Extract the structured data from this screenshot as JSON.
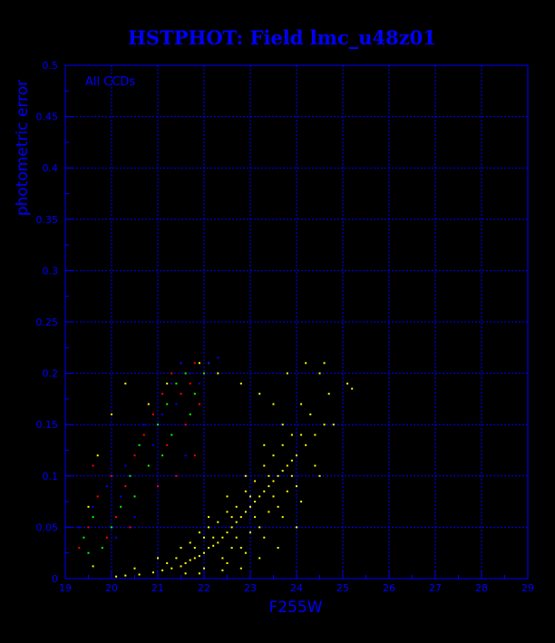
{
  "window": {
    "background": "#000000"
  },
  "chart_data": {
    "type": "scatter",
    "title": "HSTPHOT: Field lmc_u48z01",
    "xlabel": "F255W",
    "ylabel": "photometric error",
    "annotation": "All CCDs",
    "xlim": [
      19,
      29
    ],
    "ylim": [
      0,
      0.5
    ],
    "xticks": [
      "19",
      "20",
      "21",
      "22",
      "23",
      "24",
      "25",
      "26",
      "27",
      "28",
      "29"
    ],
    "yticks": [
      "0",
      "0.05",
      "0.1",
      "0.15",
      "0.2",
      "0.25",
      "0.3",
      "0.35",
      "0.4",
      "0.45",
      "0.5"
    ],
    "grid": true,
    "colors": {
      "axis": "#0000ff",
      "grid": "#0000ff",
      "text": "#0000ff"
    },
    "series": [
      {
        "color": "#ffff00",
        "points": [
          [
            20.1,
            0.002
          ],
          [
            20.3,
            0.003
          ],
          [
            20.6,
            0.004
          ],
          [
            20.9,
            0.006
          ],
          [
            21.1,
            0.008
          ],
          [
            21.3,
            0.01
          ],
          [
            21.5,
            0.012
          ],
          [
            21.6,
            0.015
          ],
          [
            21.7,
            0.018
          ],
          [
            21.8,
            0.02
          ],
          [
            21.9,
            0.022
          ],
          [
            22.0,
            0.025
          ],
          [
            22.1,
            0.03
          ],
          [
            22.2,
            0.032
          ],
          [
            22.3,
            0.035
          ],
          [
            22.4,
            0.04
          ],
          [
            22.5,
            0.045
          ],
          [
            22.6,
            0.05
          ],
          [
            22.7,
            0.055
          ],
          [
            22.8,
            0.06
          ],
          [
            22.9,
            0.065
          ],
          [
            23.0,
            0.07
          ],
          [
            23.1,
            0.075
          ],
          [
            23.2,
            0.08
          ],
          [
            23.3,
            0.085
          ],
          [
            23.4,
            0.09
          ],
          [
            23.5,
            0.095
          ],
          [
            23.6,
            0.1
          ],
          [
            23.7,
            0.105
          ],
          [
            23.8,
            0.11
          ],
          [
            23.9,
            0.115
          ],
          [
            24.0,
            0.12
          ],
          [
            24.2,
            0.13
          ],
          [
            24.4,
            0.14
          ],
          [
            24.6,
            0.15
          ],
          [
            21.4,
            0.02
          ],
          [
            21.8,
            0.03
          ],
          [
            22.2,
            0.04
          ],
          [
            22.6,
            0.06
          ],
          [
            23.0,
            0.08
          ],
          [
            23.4,
            0.1
          ],
          [
            21.6,
            0.005
          ],
          [
            22.0,
            0.01
          ],
          [
            22.4,
            0.02
          ],
          [
            22.8,
            0.03
          ],
          [
            23.2,
            0.05
          ],
          [
            23.6,
            0.07
          ],
          [
            24.0,
            0.09
          ],
          [
            21.9,
            0.045
          ],
          [
            22.3,
            0.055
          ],
          [
            22.7,
            0.07
          ],
          [
            23.1,
            0.095
          ],
          [
            23.5,
            0.12
          ],
          [
            23.9,
            0.14
          ],
          [
            24.3,
            0.16
          ],
          [
            24.7,
            0.18
          ],
          [
            25.1,
            0.19
          ],
          [
            22.5,
            0.015
          ],
          [
            22.9,
            0.025
          ],
          [
            23.3,
            0.04
          ],
          [
            23.7,
            0.06
          ],
          [
            24.1,
            0.075
          ],
          [
            24.5,
            0.1
          ],
          [
            21.2,
            0.015
          ],
          [
            21.7,
            0.035
          ],
          [
            22.1,
            0.06
          ],
          [
            22.5,
            0.08
          ],
          [
            22.9,
            0.1
          ],
          [
            23.3,
            0.13
          ],
          [
            23.7,
            0.15
          ],
          [
            24.1,
            0.17
          ],
          [
            24.5,
            0.2
          ],
          [
            23.0,
            0.045
          ],
          [
            23.4,
            0.065
          ],
          [
            23.8,
            0.085
          ],
          [
            22.6,
            0.03
          ],
          [
            22.0,
            0.04
          ],
          [
            21.5,
            0.03
          ],
          [
            21.0,
            0.02
          ],
          [
            20.5,
            0.01
          ],
          [
            19.6,
            0.012
          ],
          [
            19.5,
            0.07
          ],
          [
            19.7,
            0.12
          ],
          [
            20.0,
            0.16
          ],
          [
            20.3,
            0.19
          ],
          [
            20.8,
            0.17
          ],
          [
            21.2,
            0.19
          ],
          [
            21.9,
            0.21
          ],
          [
            22.3,
            0.2
          ],
          [
            22.8,
            0.19
          ],
          [
            23.2,
            0.18
          ],
          [
            23.5,
            0.17
          ],
          [
            23.8,
            0.2
          ],
          [
            24.2,
            0.21
          ],
          [
            24.6,
            0.21
          ],
          [
            25.2,
            0.185
          ],
          [
            24.8,
            0.15
          ],
          [
            24.4,
            0.11
          ],
          [
            24.0,
            0.05
          ],
          [
            23.6,
            0.03
          ],
          [
            23.2,
            0.02
          ],
          [
            22.8,
            0.01
          ],
          [
            22.4,
            0.008
          ],
          [
            21.9,
            0.005
          ],
          [
            22.1,
            0.05
          ],
          [
            22.5,
            0.065
          ],
          [
            22.9,
            0.085
          ],
          [
            23.3,
            0.11
          ],
          [
            23.7,
            0.13
          ],
          [
            24.1,
            0.14
          ],
          [
            22.7,
            0.04
          ],
          [
            23.1,
            0.06
          ],
          [
            23.5,
            0.08
          ],
          [
            23.9,
            0.1
          ]
        ]
      },
      {
        "color": "#ff0000",
        "points": [
          [
            19.3,
            0.03
          ],
          [
            19.5,
            0.05
          ],
          [
            19.7,
            0.08
          ],
          [
            19.9,
            0.04
          ],
          [
            20.1,
            0.06
          ],
          [
            20.3,
            0.09
          ],
          [
            20.5,
            0.12
          ],
          [
            20.7,
            0.14
          ],
          [
            20.9,
            0.16
          ],
          [
            21.1,
            0.18
          ],
          [
            21.3,
            0.2
          ],
          [
            21.5,
            0.21
          ],
          [
            21.7,
            0.19
          ],
          [
            21.9,
            0.17
          ],
          [
            21.2,
            0.13
          ],
          [
            21.4,
            0.1
          ],
          [
            21.6,
            0.15
          ],
          [
            21.8,
            0.12
          ],
          [
            20.4,
            0.05
          ],
          [
            20.0,
            0.1
          ],
          [
            19.6,
            0.11
          ],
          [
            21.0,
            0.09
          ],
          [
            21.5,
            0.18
          ],
          [
            21.8,
            0.21
          ]
        ]
      },
      {
        "color": "#00ff00",
        "points": [
          [
            19.4,
            0.04
          ],
          [
            19.6,
            0.06
          ],
          [
            19.8,
            0.03
          ],
          [
            20.0,
            0.05
          ],
          [
            20.2,
            0.07
          ],
          [
            20.4,
            0.1
          ],
          [
            20.6,
            0.13
          ],
          [
            20.8,
            0.11
          ],
          [
            21.0,
            0.15
          ],
          [
            21.2,
            0.17
          ],
          [
            21.4,
            0.19
          ],
          [
            21.6,
            0.2
          ],
          [
            21.8,
            0.18
          ],
          [
            22.0,
            0.2
          ],
          [
            21.3,
            0.14
          ],
          [
            21.7,
            0.16
          ],
          [
            20.5,
            0.08
          ],
          [
            19.5,
            0.025
          ],
          [
            22.1,
            0.21
          ],
          [
            21.1,
            0.12
          ]
        ]
      },
      {
        "color": "#0000ff",
        "points": [
          [
            19.3,
            0.05
          ],
          [
            19.6,
            0.07
          ],
          [
            19.9,
            0.09
          ],
          [
            20.1,
            0.04
          ],
          [
            20.3,
            0.11
          ],
          [
            20.5,
            0.06
          ],
          [
            20.7,
            0.15
          ],
          [
            20.9,
            0.13
          ],
          [
            21.1,
            0.16
          ],
          [
            21.3,
            0.19
          ],
          [
            21.5,
            0.21
          ],
          [
            21.7,
            0.2
          ],
          [
            21.9,
            0.19
          ],
          [
            22.1,
            0.21
          ],
          [
            21.4,
            0.17
          ],
          [
            21.6,
            0.12
          ],
          [
            20.2,
            0.08
          ],
          [
            22.3,
            0.215
          ]
        ]
      }
    ]
  }
}
